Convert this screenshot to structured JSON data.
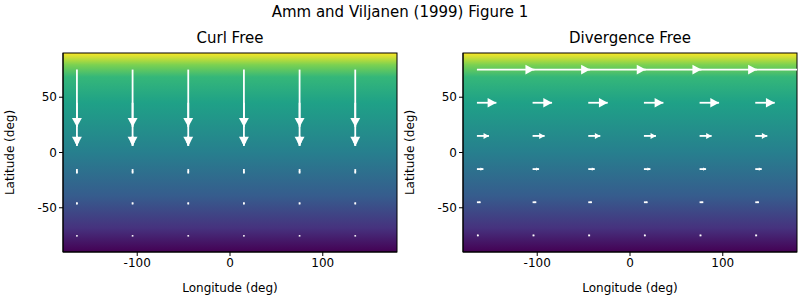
{
  "title": "Amm and Viljanen (1999) Figure 1",
  "chart_data": [
    {
      "type": "quiver",
      "title": "Curl Free",
      "x_label": "Longitude (deg)",
      "y_label": "Latitude (deg)",
      "x": [
        -165,
        -105,
        -45,
        15,
        75,
        135
      ],
      "y": [
        75,
        45,
        15,
        -15,
        -45,
        -75
      ],
      "u": [
        [
          0,
          0,
          0,
          0,
          0,
          0
        ],
        [
          0,
          0,
          0,
          0,
          0,
          0
        ],
        [
          0,
          0,
          0,
          0,
          0,
          0
        ],
        [
          0,
          0,
          0,
          0,
          0,
          0
        ],
        [
          0,
          0,
          0,
          0,
          0,
          0
        ],
        [
          0,
          0,
          0,
          0,
          0,
          0
        ]
      ],
      "v": [
        [
          -69,
          -69,
          -69,
          -69,
          -69,
          -69
        ],
        [
          -22,
          -22,
          -22,
          -22,
          -22,
          -22
        ],
        [
          -9,
          -9,
          -9,
          -9,
          -9,
          -9
        ],
        [
          -4,
          -4,
          -4,
          -4,
          -4,
          -4
        ],
        [
          -2,
          -2,
          -2,
          -2,
          -2,
          -2
        ],
        [
          -1,
          -1,
          -1,
          -1,
          -1,
          -1
        ]
      ],
      "color": "#ffffff",
      "xlim": [
        -180,
        180
      ],
      "ylim": [
        -90,
        90
      ],
      "xticks": [
        -100,
        0,
        100
      ],
      "yticks": [
        -50,
        0,
        50
      ]
    },
    {
      "type": "quiver",
      "title": "Divergence Free",
      "x_label": "Longitude (deg)",
      "y_label": "Latitude (deg)",
      "x": [
        -165,
        -105,
        -45,
        15,
        75,
        135
      ],
      "y": [
        75,
        45,
        15,
        -15,
        -45,
        -75
      ],
      "u": [
        [
          62,
          62,
          62,
          62,
          62,
          62
        ],
        [
          21,
          21,
          21,
          21,
          21,
          21
        ],
        [
          13,
          13,
          13,
          13,
          13,
          13
        ],
        [
          7,
          7,
          7,
          7,
          7,
          7
        ],
        [
          4,
          4,
          4,
          4,
          4,
          4
        ],
        [
          2,
          2,
          2,
          2,
          2,
          2
        ]
      ],
      "v": [
        [
          0,
          0,
          0,
          0,
          0,
          0
        ],
        [
          0,
          0,
          0,
          0,
          0,
          0
        ],
        [
          0,
          0,
          0,
          0,
          0,
          0
        ],
        [
          0,
          0,
          0,
          0,
          0,
          0
        ],
        [
          0,
          0,
          0,
          0,
          0,
          0
        ],
        [
          0,
          0,
          0,
          0,
          0,
          0
        ]
      ],
      "color": "#ffffff",
      "xlim": [
        -180,
        180
      ],
      "ylim": [
        -90,
        90
      ],
      "xticks": [
        -100,
        0,
        100
      ],
      "yticks": [
        -50,
        0,
        50
      ]
    }
  ]
}
